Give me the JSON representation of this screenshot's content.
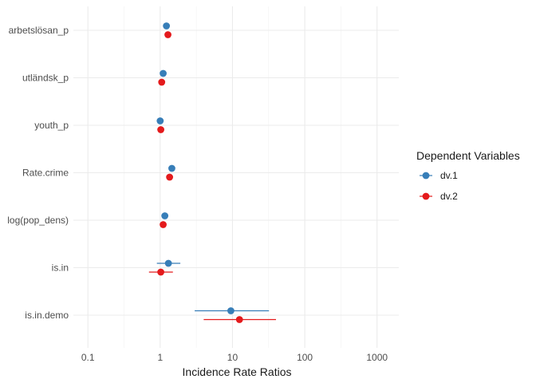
{
  "chart_data": {
    "type": "scatter",
    "title": "",
    "xlabel": "Incidence Rate Ratios",
    "ylabel": "",
    "x_scale": "log10",
    "xlim": [
      0.063,
      2000
    ],
    "x_ticks": [
      0.1,
      1,
      10,
      100,
      1000
    ],
    "x_tick_labels": [
      "0.1",
      "1",
      "10",
      "100",
      "1000"
    ],
    "grid": true,
    "categories": [
      "arbetslösan_p",
      "utländsk_p",
      "youth_p",
      "Rate.crime",
      "log(pop_dens)",
      "is.in",
      "is.in.demo"
    ],
    "legend": {
      "title": "Dependent Variables",
      "position": "right"
    },
    "series": [
      {
        "name": "dv.1",
        "color": "#377EB8",
        "points": [
          {
            "category": "arbetslösan_p",
            "estimate": 1.22,
            "ci_low": 1.16,
            "ci_high": 1.28
          },
          {
            "category": "utländsk_p",
            "estimate": 1.1,
            "ci_low": 1.06,
            "ci_high": 1.15
          },
          {
            "category": "youth_p",
            "estimate": 1.0,
            "ci_low": 0.96,
            "ci_high": 1.04
          },
          {
            "category": "Rate.crime",
            "estimate": 1.45,
            "ci_low": 1.39,
            "ci_high": 1.51
          },
          {
            "category": "log(pop_dens)",
            "estimate": 1.16,
            "ci_low": 1.11,
            "ci_high": 1.21
          },
          {
            "category": "is.in",
            "estimate": 1.3,
            "ci_low": 0.9,
            "ci_high": 1.9
          },
          {
            "category": "is.in.demo",
            "estimate": 9.5,
            "ci_low": 3.0,
            "ci_high": 32
          }
        ]
      },
      {
        "name": "dv.2",
        "color": "#E41A1C",
        "points": [
          {
            "category": "arbetslösan_p",
            "estimate": 1.28,
            "ci_low": 1.22,
            "ci_high": 1.35
          },
          {
            "category": "utländsk_p",
            "estimate": 1.05,
            "ci_low": 0.95,
            "ci_high": 1.16
          },
          {
            "category": "youth_p",
            "estimate": 1.02,
            "ci_low": 0.98,
            "ci_high": 1.06
          },
          {
            "category": "Rate.crime",
            "estimate": 1.35,
            "ci_low": 1.29,
            "ci_high": 1.41
          },
          {
            "category": "log(pop_dens)",
            "estimate": 1.1,
            "ci_low": 1.05,
            "ci_high": 1.15
          },
          {
            "category": "is.in",
            "estimate": 1.02,
            "ci_low": 0.7,
            "ci_high": 1.5
          },
          {
            "category": "is.in.demo",
            "estimate": 12.5,
            "ci_low": 4.0,
            "ci_high": 40
          }
        ]
      }
    ]
  }
}
